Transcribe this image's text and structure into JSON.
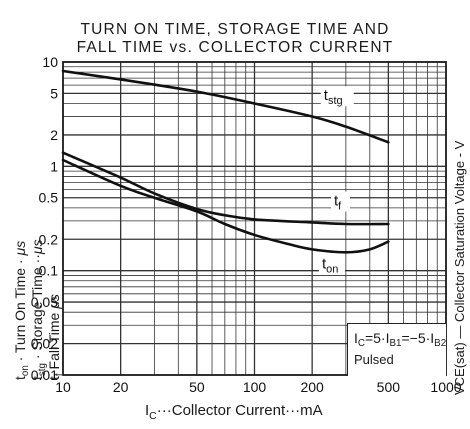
{
  "chart_data": {
    "type": "line",
    "title_line1": "TURN ON TIME, STORAGE TIME AND",
    "title_line2": "FALL TIME vs. COLLECTOR CURRENT",
    "xlabel": {
      "symbol": "I",
      "symbol_sub": "C",
      "text": "···Collector Current···mA"
    },
    "ylabel_lines": [
      {
        "sym": "t",
        "sub": "on",
        "text": " · Turn On Time · ",
        "unit": "μs"
      },
      {
        "sym": "t",
        "sub": "stg",
        "text": " · Storage Time ··",
        "unit": "μs"
      },
      {
        "sym": "t",
        "sub": "f",
        "text": " Fall Time  ",
        "unit": "μs"
      }
    ],
    "side_label": "VCE(sat) — Collector Saturation Voltage - V",
    "x_scale": "log",
    "y_scale": "log",
    "xlim": [
      10,
      1000
    ],
    "ylim": [
      0.01,
      10
    ],
    "x_ticks": [
      {
        "v": 10,
        "label": "10"
      },
      {
        "v": 20,
        "label": "20"
      },
      {
        "v": 50,
        "label": "50"
      },
      {
        "v": 100,
        "label": "100"
      },
      {
        "v": 200,
        "label": "200"
      },
      {
        "v": 500,
        "label": "500"
      },
      {
        "v": 1000,
        "label": "1000"
      }
    ],
    "y_ticks": [
      {
        "v": 10,
        "label": "10"
      },
      {
        "v": 5,
        "label": "5"
      },
      {
        "v": 2,
        "label": "2"
      },
      {
        "v": 1,
        "label": "1"
      },
      {
        "v": 0.5,
        "label": "0.5"
      },
      {
        "v": 0.2,
        "label": "0.2"
      },
      {
        "v": 0.1,
        "label": "0.1"
      },
      {
        "v": 0.05,
        "label": "0.05"
      },
      {
        "v": 0.02,
        "label": "0.02"
      },
      {
        "v": 0.01,
        "label": "0.01"
      }
    ],
    "grid": true,
    "series": [
      {
        "name": "t",
        "sub": "stg",
        "label_at": [
          230,
          4.3
        ],
        "x": [
          10,
          20,
          50,
          100,
          200,
          300,
          500
        ],
        "y": [
          8.2,
          6.8,
          5.2,
          4.0,
          3.0,
          2.4,
          1.7
        ]
      },
      {
        "name": "t",
        "sub": "f",
        "label_at": [
          260,
          0.42
        ],
        "x": [
          10,
          20,
          30,
          50,
          70,
          100,
          200,
          300,
          500
        ],
        "y": [
          1.35,
          0.78,
          0.55,
          0.39,
          0.34,
          0.31,
          0.29,
          0.28,
          0.28
        ]
      },
      {
        "name": "t",
        "sub": "on",
        "label_at": [
          225,
          0.105
        ],
        "x": [
          10,
          20,
          30,
          50,
          70,
          100,
          150,
          200,
          300,
          400,
          500
        ],
        "y": [
          1.15,
          0.65,
          0.5,
          0.37,
          0.28,
          0.22,
          0.18,
          0.16,
          0.15,
          0.16,
          0.19
        ]
      }
    ],
    "legend_condition": {
      "parts": [
        "I",
        "C",
        "=5·I",
        "B1",
        "=−5·I",
        "B2"
      ]
    },
    "legend_pulsed": "Pulsed"
  }
}
